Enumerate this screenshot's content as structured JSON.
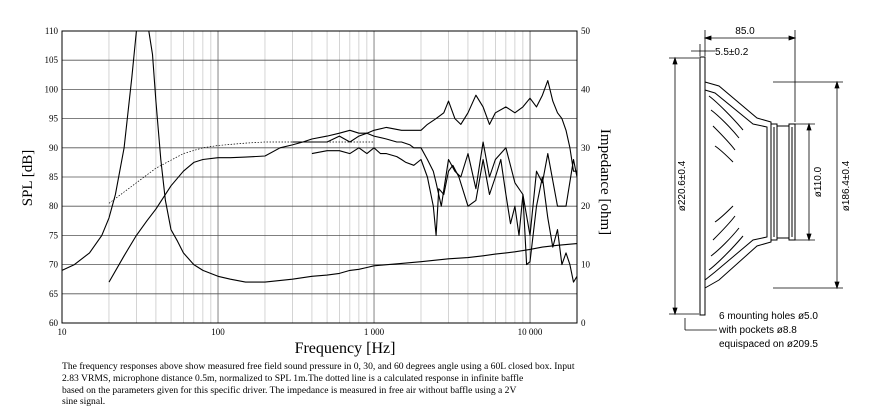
{
  "chart_data": {
    "type": "line",
    "x_axis": {
      "label": "Frequency [Hz]",
      "scale": "log",
      "range": [
        10,
        20000
      ],
      "tick_labels": [
        {
          "value": 10,
          "label": "10"
        },
        {
          "value": 100,
          "label": "100"
        },
        {
          "value": 1000,
          "label": "1 000"
        },
        {
          "value": 10000,
          "label": "10 000"
        }
      ]
    },
    "y_axis_left": {
      "label": "SPL [dB]",
      "range": [
        60,
        110
      ],
      "ticks": [
        "60",
        "65",
        "70",
        "75",
        "80",
        "85",
        "90",
        "95",
        "100",
        "105",
        "110"
      ]
    },
    "y_axis_right": {
      "label": "Impedance [ohm]",
      "range": [
        0,
        50
      ],
      "ticks": [
        "0",
        "10",
        "20",
        "30",
        "40",
        "50"
      ]
    },
    "grid": true,
    "series": [
      {
        "axis": "left",
        "x": [
          20,
          25,
          30,
          35,
          40,
          50,
          60,
          70,
          80,
          100,
          120,
          150,
          200,
          250,
          300,
          350,
          400,
          500,
          600,
          700,
          800,
          900,
          1000,
          1200,
          1500,
          1800,
          2000,
          2200,
          2500,
          2800,
          3000,
          3300,
          3600,
          4000,
          4500,
          5000,
          5500,
          6000,
          7000,
          8000,
          9000,
          10000,
          11000,
          12000,
          13000,
          14000,
          15000,
          16000,
          17000,
          18000,
          19000,
          20000
        ],
        "y": [
          67,
          71.5,
          75,
          77.5,
          79.5,
          83.5,
          86,
          87.5,
          88,
          88.3,
          88.3,
          88.4,
          88.6,
          90,
          90.5,
          91,
          91.5,
          92,
          92.5,
          93,
          92.5,
          92.5,
          93,
          93.5,
          93,
          93,
          93,
          94,
          95,
          96,
          98,
          95,
          94,
          96,
          99,
          97,
          94,
          96,
          97,
          96,
          97,
          98.5,
          97,
          99,
          101.5,
          98,
          96,
          95,
          93,
          90,
          86,
          86
        ]
      },
      {
        "axis": "left",
        "x": [
          300,
          400,
          500,
          600,
          700,
          800,
          900,
          1000,
          1200,
          1400,
          1500,
          1700,
          1800,
          2000,
          2200,
          2400,
          2500,
          2700,
          3000,
          3300,
          3600,
          4000,
          4500,
          5000,
          5500,
          6000,
          7000,
          8000,
          9000,
          10000,
          11000,
          12000,
          13000,
          15000,
          17000,
          19000,
          20000
        ],
        "y": [
          91,
          91,
          91,
          92,
          91,
          92,
          92.5,
          92,
          91.5,
          91,
          91,
          90.5,
          90,
          90,
          88,
          86,
          84,
          80,
          88,
          86,
          85,
          89,
          83,
          91,
          85,
          88,
          90,
          84,
          82,
          75,
          86,
          84,
          89,
          80,
          80,
          88,
          85
        ]
      },
      {
        "axis": "left",
        "x": [
          400,
          500,
          600,
          700,
          800,
          900,
          1000,
          1100,
          1200,
          1400,
          1500,
          1600,
          1800,
          2000,
          2200,
          2400,
          2500,
          2600,
          2800,
          3000,
          3200,
          3500,
          4000,
          4500,
          5000,
          5500,
          6000,
          6500,
          7000,
          7500,
          8000,
          8500,
          9000,
          9500,
          10000,
          11000,
          12000,
          13000,
          14000,
          15000,
          16000,
          17000,
          18000,
          19000,
          20000
        ],
        "y": [
          89,
          89.5,
          89.5,
          89,
          90,
          89,
          90,
          89,
          89,
          88.5,
          88,
          87.5,
          87,
          88,
          85,
          80,
          75,
          83,
          82,
          86,
          87,
          85,
          80,
          81,
          88,
          82,
          85,
          88,
          82,
          77,
          80,
          75,
          82,
          70,
          70.5,
          80,
          85,
          78,
          73,
          76,
          70,
          72,
          70,
          67,
          68
        ]
      },
      {
        "axis": "left",
        "dotted": true,
        "x": [
          20,
          30,
          40,
          60,
          80,
          100,
          150,
          200,
          300,
          500,
          800,
          1000
        ],
        "y": [
          80.5,
          84,
          86.5,
          89,
          90,
          90.4,
          90.8,
          91,
          91,
          91,
          91,
          91
        ]
      },
      {
        "axis": "right",
        "x": [
          10,
          12,
          15,
          18,
          20,
          22,
          25,
          28,
          30,
          32,
          34,
          36,
          38,
          40,
          43,
          46,
          50,
          55,
          60,
          70,
          80,
          100,
          120,
          150,
          200,
          300,
          400,
          500,
          600,
          700,
          800,
          900,
          1000,
          1500,
          2000,
          3000,
          4000,
          5000,
          6000,
          7000,
          8000,
          9000,
          10000,
          12000,
          15000,
          18000,
          20000
        ],
        "y": [
          9,
          10,
          12,
          15,
          18,
          22,
          30,
          42,
          50,
          50,
          50,
          50,
          46,
          38,
          28,
          21,
          16,
          14,
          12,
          10,
          9,
          8,
          7.5,
          7,
          7,
          7.5,
          8,
          8.2,
          8.5,
          9,
          9.2,
          9.5,
          9.8,
          10.2,
          10.5,
          11,
          11.2,
          11.5,
          11.8,
          12,
          12.2,
          12.4,
          12.6,
          13,
          13.3,
          13.5,
          13.6
        ]
      }
    ]
  },
  "caption": {
    "line1": "The frequency responses above show measured free field sound pressure in 0, 30, and 60 degrees angle using a 60L closed box. Input",
    "line2": "2.83 VRMS, microphone distance 0.5m, normalized to SPL 1m.The dotted line is a calculated response in infinite baffle",
    "line3": "based on the parameters given for this specific driver. The impedance is measured in free air without baffle using a 2V",
    "line4": "sine signal."
  },
  "drawing": {
    "dim_depth": "85.0",
    "dim_flange": "5.5±0.2",
    "dim_outer": "ø220.6±0.4",
    "dim_magnet": "ø110.0",
    "dim_cutout": "ø186.4±0.4",
    "note1": "6 mounting holes ø5.0",
    "note2": "with pockets ø8.8",
    "note3": "equispaced on ø209.5"
  }
}
